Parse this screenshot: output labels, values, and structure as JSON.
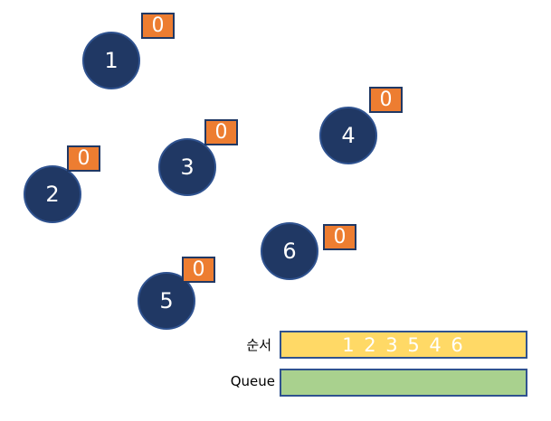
{
  "nodes": [
    {
      "label": "1",
      "badge": "0"
    },
    {
      "label": "2",
      "badge": "0"
    },
    {
      "label": "3",
      "badge": "0"
    },
    {
      "label": "4",
      "badge": "0"
    },
    {
      "label": "5",
      "badge": "0"
    },
    {
      "label": "6",
      "badge": "0"
    }
  ],
  "order": {
    "label": "순서",
    "value": "1 2 3 5 4 6"
  },
  "queue": {
    "label": "Queue",
    "value": ""
  },
  "colors": {
    "node_fill": "#203864",
    "node_border": "#2f528f",
    "badge_fill": "#ed7d31",
    "order_bar": "#ffd966",
    "queue_bar": "#a9d18e"
  }
}
